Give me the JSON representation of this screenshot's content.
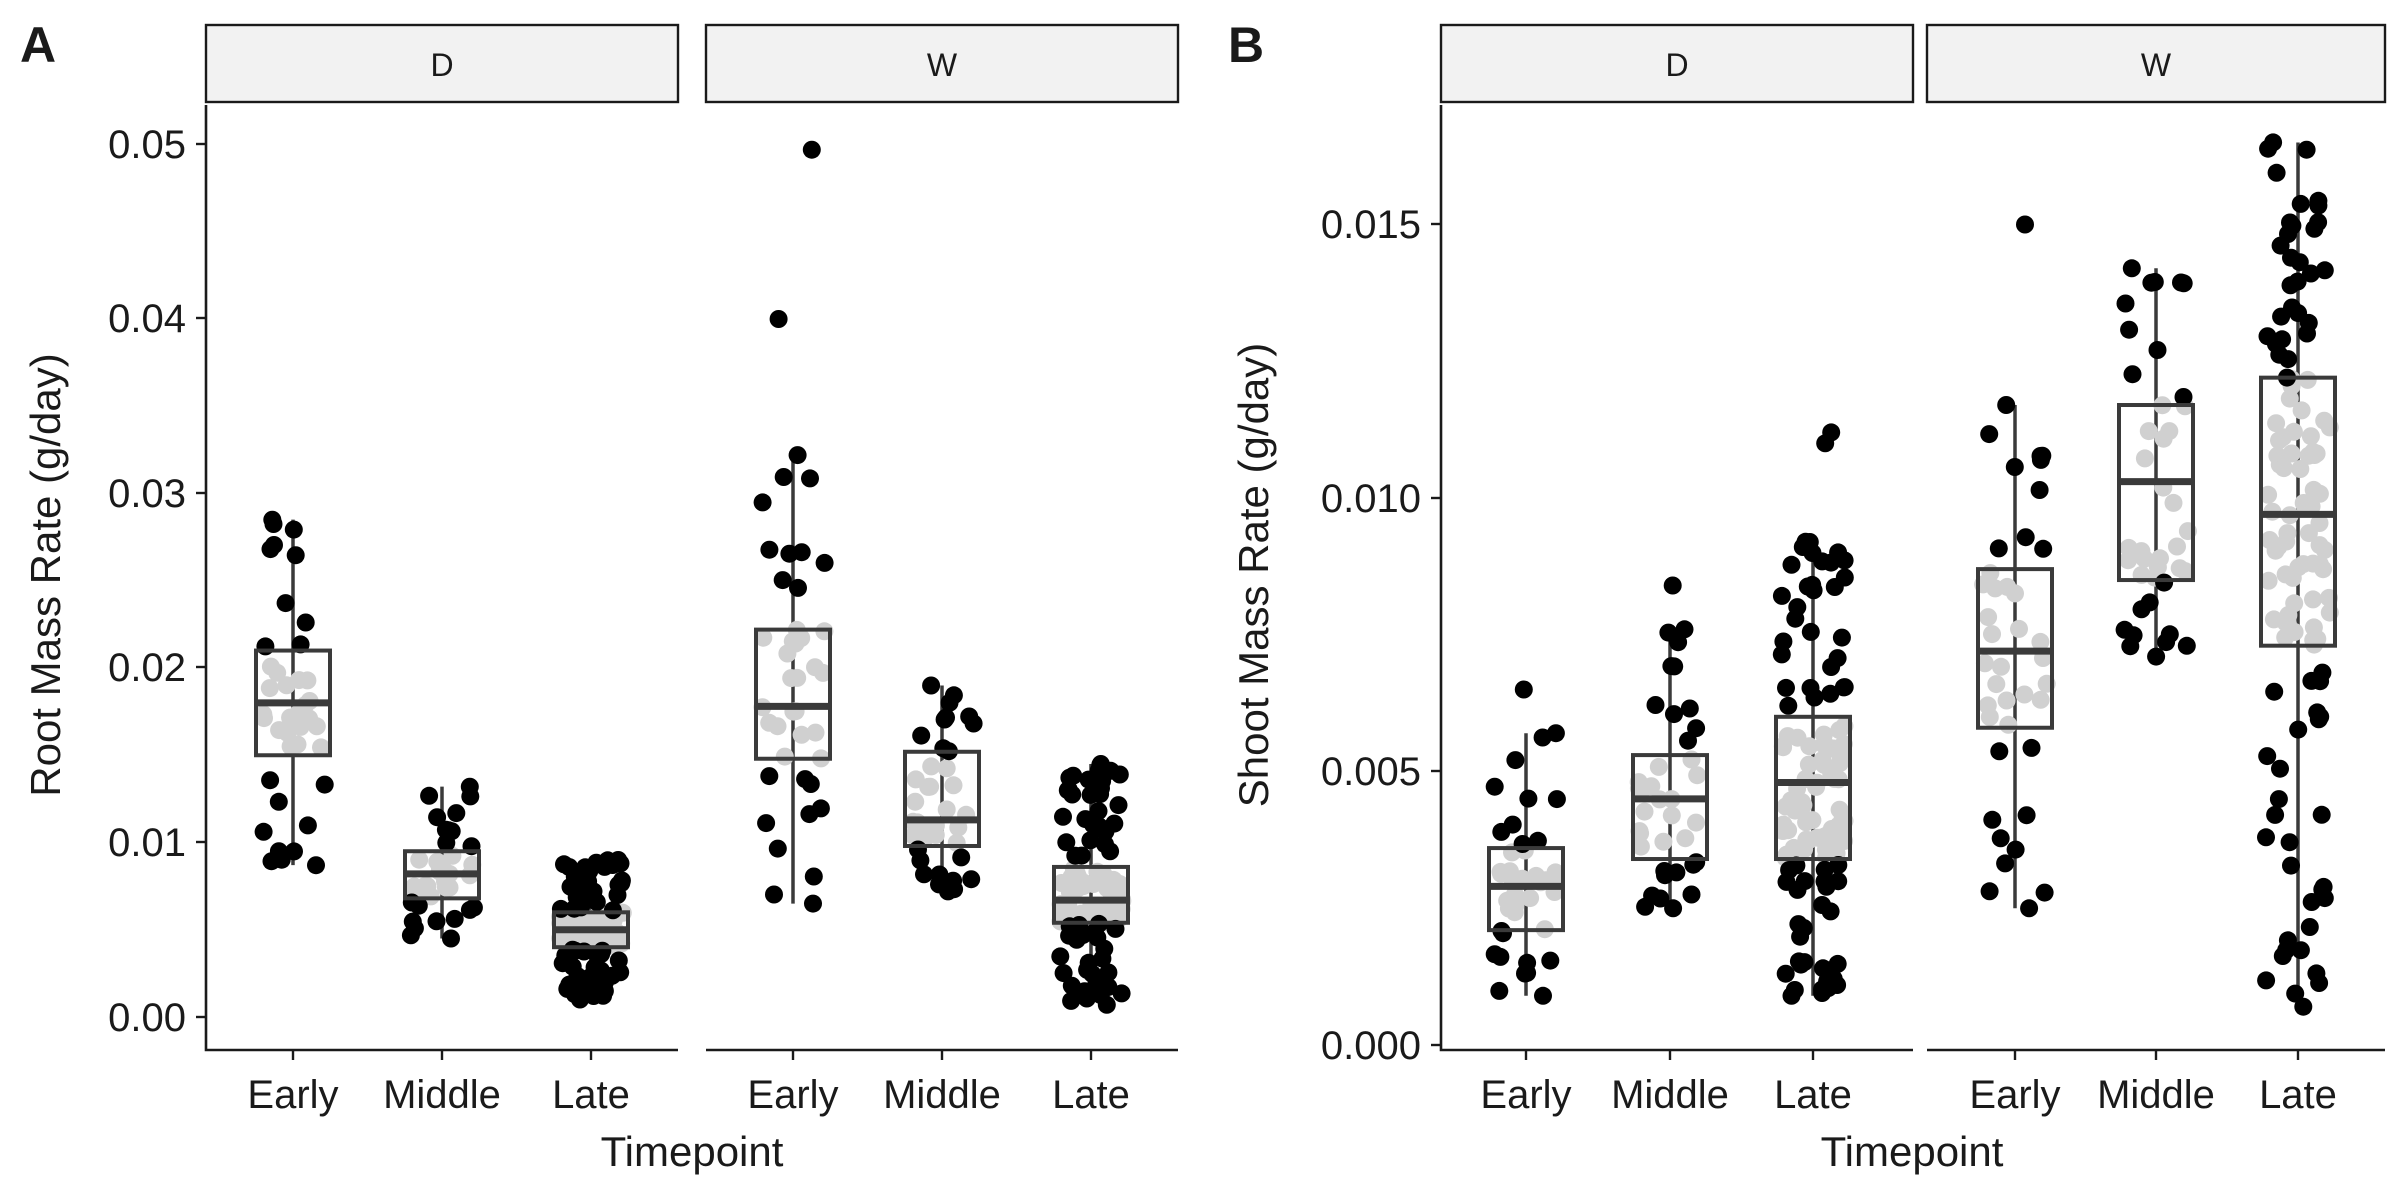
{
  "chart_data": [
    {
      "type": "boxplot",
      "panel_tag": "A",
      "xlabel": "Timepoint",
      "ylabel": "Root Mass Rate (g/day)",
      "ylim": [
        -0.0018,
        0.0523
      ],
      "yticks": [
        "0.00",
        "0.01",
        "0.02",
        "0.03",
        "0.04",
        "0.05"
      ],
      "ytick_values": [
        0.0,
        0.01,
        0.02,
        0.03,
        0.04,
        0.05
      ],
      "categories": [
        "Early",
        "Middle",
        "Late"
      ],
      "facets": [
        {
          "label": "D",
          "boxes": [
            {
              "category": "Early",
              "q1": 0.015,
              "median": 0.018,
              "q3": 0.021,
              "whisker_low": 0.0087,
              "whisker_high": 0.0285,
              "n": 40,
              "seed": 11
            },
            {
              "category": "Middle",
              "q1": 0.0068,
              "median": 0.0082,
              "q3": 0.0095,
              "whisker_low": 0.0045,
              "whisker_high": 0.0132,
              "n": 40,
              "seed": 23
            },
            {
              "category": "Late",
              "q1": 0.004,
              "median": 0.005,
              "q3": 0.006,
              "whisker_low": 0.001,
              "whisker_high": 0.009,
              "n": 120,
              "seed": 37
            }
          ]
        },
        {
          "label": "W",
          "boxes": [
            {
              "category": "Early",
              "q1": 0.0148,
              "median": 0.0178,
              "q3": 0.0222,
              "whisker_low": 0.0065,
              "whisker_high": 0.0322,
              "n": 40,
              "seed": 41,
              "outliers": [
                0.04,
                0.0497
              ]
            },
            {
              "category": "Middle",
              "q1": 0.0098,
              "median": 0.0113,
              "q3": 0.0152,
              "whisker_low": 0.0072,
              "whisker_high": 0.019,
              "n": 40,
              "seed": 53
            },
            {
              "category": "Late",
              "q1": 0.0054,
              "median": 0.0067,
              "q3": 0.0086,
              "whisker_low": 0.0007,
              "whisker_high": 0.0145,
              "n": 120,
              "seed": 67
            }
          ]
        }
      ]
    },
    {
      "type": "boxplot",
      "panel_tag": "B",
      "xlabel": "Timepoint",
      "ylabel": "Shoot Mass Rate (g/day)",
      "ylim": [
        0.0,
        0.0172
      ],
      "yticks": [
        "0.000",
        "0.005",
        "0.010",
        "0.015"
      ],
      "ytick_values": [
        0.0,
        0.005,
        0.01,
        0.015
      ],
      "categories": [
        "Early",
        "Middle",
        "Late"
      ],
      "facets": [
        {
          "label": "D",
          "boxes": [
            {
              "category": "Early",
              "q1": 0.0021,
              "median": 0.0029,
              "q3": 0.0036,
              "whisker_low": 0.0009,
              "whisker_high": 0.0057,
              "n": 40,
              "seed": 71,
              "outliers": [
                0.0065
              ]
            },
            {
              "category": "Middle",
              "q1": 0.0034,
              "median": 0.0045,
              "q3": 0.0053,
              "whisker_low": 0.0025,
              "whisker_high": 0.0076,
              "n": 40,
              "seed": 83,
              "outliers": [
                0.0084
              ]
            },
            {
              "category": "Late",
              "q1": 0.0034,
              "median": 0.0048,
              "q3": 0.006,
              "whisker_low": 0.0009,
              "whisker_high": 0.0092,
              "n": 120,
              "seed": 97,
              "outliers": [
                0.011,
                0.0112
              ]
            }
          ]
        },
        {
          "label": "W",
          "boxes": [
            {
              "category": "Early",
              "q1": 0.0058,
              "median": 0.0072,
              "q3": 0.0087,
              "whisker_low": 0.0025,
              "whisker_high": 0.0117,
              "n": 40,
              "seed": 101,
              "outliers": [
                0.015
              ]
            },
            {
              "category": "Middle",
              "q1": 0.0085,
              "median": 0.0103,
              "q3": 0.0117,
              "whisker_low": 0.0071,
              "whisker_high": 0.0142,
              "n": 40,
              "seed": 113
            },
            {
              "category": "Late",
              "q1": 0.0073,
              "median": 0.0097,
              "q3": 0.0122,
              "whisker_low": 0.0007,
              "whisker_high": 0.0165,
              "n": 120,
              "seed": 127
            }
          ]
        }
      ]
    }
  ]
}
